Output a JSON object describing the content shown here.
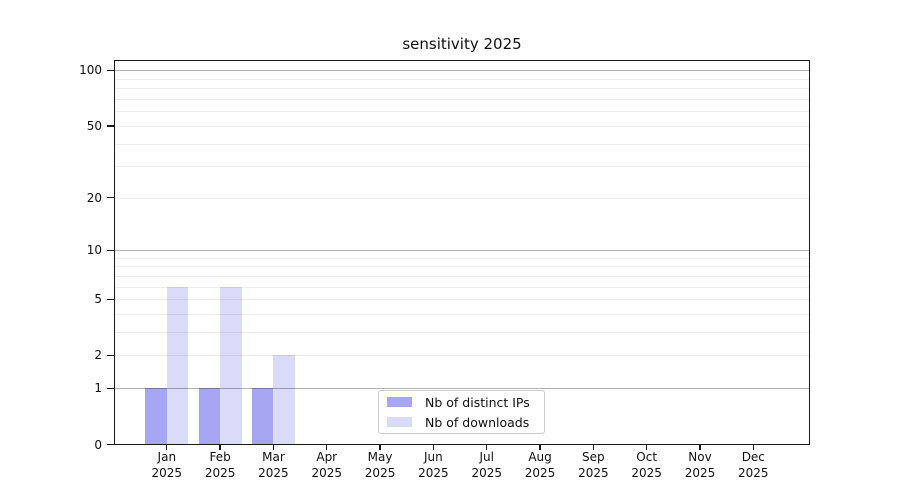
{
  "chart_data": {
    "type": "bar",
    "title": "sensitivity 2025",
    "year": "2025",
    "categories": [
      "Jan",
      "Feb",
      "Mar",
      "Apr",
      "May",
      "Jun",
      "Jul",
      "Aug",
      "Sep",
      "Oct",
      "Nov",
      "Dec"
    ],
    "series": [
      {
        "name": "Nb of distinct IPs",
        "color": "#a6a6f2",
        "values": [
          1,
          1,
          1,
          0,
          0,
          0,
          0,
          0,
          0,
          0,
          0,
          0
        ]
      },
      {
        "name": "Nb of downloads",
        "color": "#dadaf9",
        "values": [
          6,
          6,
          2,
          0,
          0,
          0,
          0,
          0,
          0,
          0,
          0,
          0
        ]
      }
    ],
    "y_axis": {
      "scale": "log10(value+1)",
      "tick_values": [
        0,
        1,
        2,
        5,
        10,
        20,
        50,
        100
      ],
      "tick_labels": [
        "0",
        "1",
        "2",
        "5",
        "10",
        "20",
        "50",
        "100"
      ],
      "range": [
        0,
        114
      ],
      "major_grid_values": [
        1,
        10,
        100
      ],
      "minor_grid_values": [
        2,
        3,
        4,
        5,
        6,
        7,
        8,
        9,
        20,
        30,
        40,
        50,
        60,
        70,
        80,
        90
      ]
    },
    "x_axis": {
      "tick_line1": [
        "Jan",
        "Feb",
        "Mar",
        "Apr",
        "May",
        "Jun",
        "Jul",
        "Aug",
        "Sep",
        "Oct",
        "Nov",
        "Dec"
      ],
      "tick_line2": [
        "2025",
        "2025",
        "2025",
        "2025",
        "2025",
        "2025",
        "2025",
        "2025",
        "2025",
        "2025",
        "2025",
        "2025"
      ]
    },
    "legend": {
      "position": "lower-center",
      "items": [
        "Nb of distinct IPs",
        "Nb of downloads"
      ]
    },
    "grid": true
  }
}
